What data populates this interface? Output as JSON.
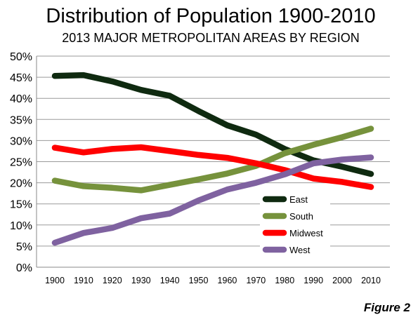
{
  "chart_data": {
    "type": "line",
    "title": "Distribution of Population 1900-2010",
    "subtitle": "2013 MAJOR METROPOLITAN AREAS BY REGION",
    "xlabel": "",
    "ylabel": "",
    "x": [
      1900,
      1910,
      1920,
      1930,
      1940,
      1950,
      1960,
      1970,
      1980,
      1990,
      2000,
      2010
    ],
    "x_tick_labels": [
      "1900",
      "1910",
      "1920",
      "1930",
      "1940",
      "1950",
      "1960",
      "1970",
      "1980",
      "1990",
      "2000",
      "2010"
    ],
    "ylim": [
      0,
      50
    ],
    "y_tick_labels": [
      "0%",
      "5%",
      "10%",
      "15%",
      "20%",
      "25%",
      "30%",
      "35%",
      "40%",
      "45%",
      "50%"
    ],
    "y_ticks": [
      0,
      5,
      10,
      15,
      20,
      25,
      30,
      35,
      40,
      45,
      50
    ],
    "grid": "horizontal",
    "legend": "center-right",
    "series": [
      {
        "name": "East",
        "color": "#0f2a10",
        "values": [
          45.3,
          45.5,
          44.0,
          42.0,
          40.6,
          37.0,
          33.6,
          31.4,
          28.0,
          25.3,
          23.8,
          22.1
        ]
      },
      {
        "name": "South",
        "color": "#76923c",
        "values": [
          20.5,
          19.2,
          18.8,
          18.2,
          19.5,
          20.8,
          22.2,
          24.0,
          27.0,
          29.0,
          30.8,
          32.8
        ]
      },
      {
        "name": "Midwest",
        "color": "#ff0000",
        "values": [
          28.3,
          27.2,
          28.0,
          28.4,
          27.5,
          26.6,
          25.9,
          24.6,
          23.0,
          21.0,
          20.2,
          19.0
        ]
      },
      {
        "name": "West",
        "color": "#7f62a0",
        "values": [
          5.8,
          8.1,
          9.3,
          11.6,
          12.7,
          15.8,
          18.4,
          20.0,
          22.0,
          24.6,
          25.5,
          26.0
        ]
      }
    ]
  },
  "caption": "Figure 2"
}
